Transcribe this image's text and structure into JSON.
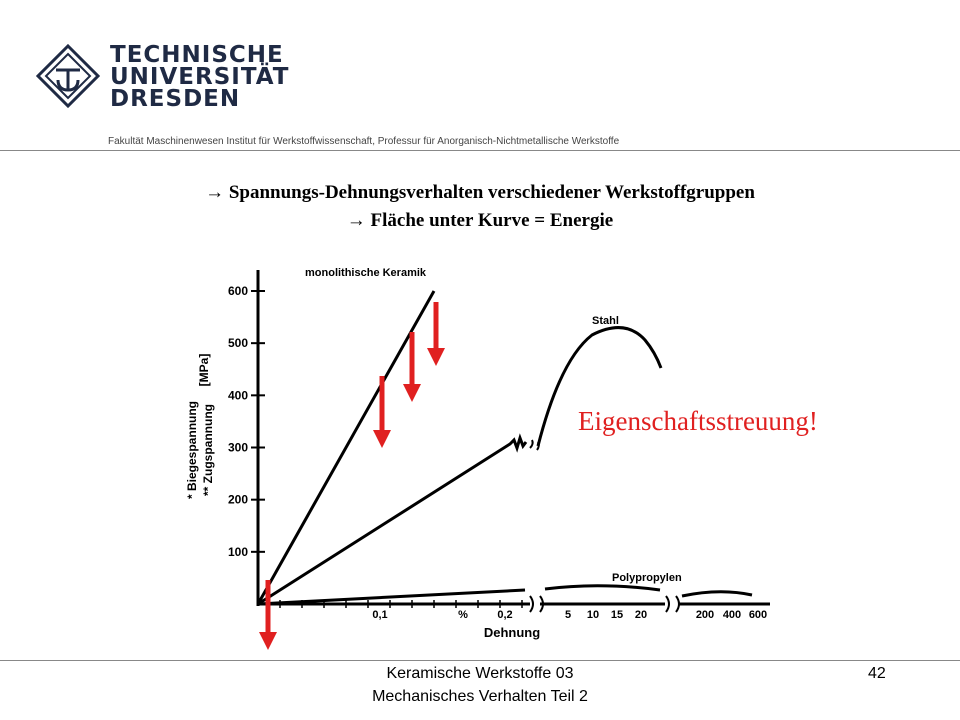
{
  "header": {
    "university_lines": [
      "TECHNISCHE",
      "UNIVERSITÄT",
      "DRESDEN"
    ],
    "faculty": "Fakultät Maschinenwesen Institut für Werkstoffwissenschaft, Professur für Anorganisch-Nichtmetallische Werkstoffe"
  },
  "headings": {
    "line1": "→ Spannungs-Dehnungsverhalten  verschiedener Werkstoffgruppen",
    "line2": "→ Fläche unter Kurve = Energie"
  },
  "chart_data": {
    "type": "line",
    "ylabel_lines": [
      "* Biegespannung",
      "** Zugspannung"
    ],
    "yunit": "[MPa]",
    "xlabel": "Dehnung",
    "ylim": [
      0,
      600
    ],
    "yticks": [
      "100",
      "200",
      "300",
      "400",
      "500",
      "600"
    ],
    "xtick_labels": [
      "0,1",
      "%",
      "0,2",
      "5",
      "10",
      "15",
      "20",
      "200",
      "400",
      "600"
    ],
    "axis_breaks": true,
    "series": [
      {
        "name": "monolithische Keramik",
        "x": [
          0,
          0.16
        ],
        "y": [
          0,
          600
        ]
      },
      {
        "name": "Stahl",
        "x": [
          0,
          0.22,
          0.23,
          0.24,
          0.25,
          0.26,
          0.27,
          "break",
          3,
          8,
          15,
          22
        ],
        "y": [
          0,
          300,
          320,
          295,
          315,
          300,
          290,
          null,
          330,
          500,
          525,
          450
        ]
      },
      {
        "name": "Polypropylen",
        "x": [
          0,
          0.2,
          "break",
          5,
          15,
          20,
          "break",
          200,
          400,
          600
        ],
        "y": [
          0,
          25,
          null,
          30,
          35,
          30,
          null,
          15,
          10,
          20
        ]
      }
    ],
    "annotations": {
      "emphasis": "Eigenschaftsstreuung!",
      "arrow_color": "#e02020"
    }
  },
  "footer": {
    "line1": "Keramische Werkstoffe 03",
    "line2": "Mechanisches Verhalten Teil 2",
    "page": "42"
  }
}
